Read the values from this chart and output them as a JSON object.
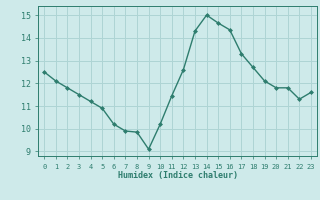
{
  "x": [
    0,
    1,
    2,
    3,
    4,
    5,
    6,
    7,
    8,
    9,
    10,
    11,
    12,
    13,
    14,
    15,
    16,
    17,
    18,
    19,
    20,
    21,
    22,
    23
  ],
  "y": [
    12.5,
    12.1,
    11.8,
    11.5,
    11.2,
    10.9,
    10.2,
    9.9,
    9.85,
    9.1,
    10.2,
    11.45,
    12.6,
    14.3,
    15.0,
    14.65,
    14.35,
    13.3,
    12.7,
    12.1,
    11.8,
    11.8,
    11.3,
    11.6
  ],
  "line_color": "#2e7d6e",
  "marker": "D",
  "marker_size": 2,
  "bg_color": "#ceeaea",
  "grid_color": "#aed4d4",
  "xlabel": "Humidex (Indice chaleur)",
  "xlim": [
    -0.5,
    23.5
  ],
  "ylim": [
    8.8,
    15.4
  ],
  "yticks": [
    9,
    10,
    11,
    12,
    13,
    14,
    15
  ],
  "xticks": [
    0,
    1,
    2,
    3,
    4,
    5,
    6,
    7,
    8,
    9,
    10,
    11,
    12,
    13,
    14,
    15,
    16,
    17,
    18,
    19,
    20,
    21,
    22,
    23
  ]
}
